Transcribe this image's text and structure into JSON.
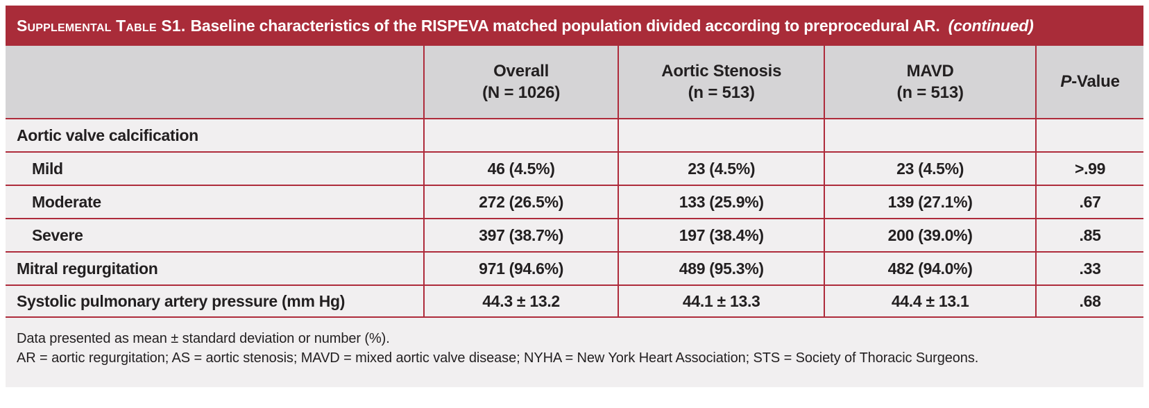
{
  "title": {
    "label_smallcaps": "Supplemental Table S1.",
    "text": "Baseline characteristics of the RISPEVA matched population divided according to preprocedural AR.",
    "continued": "(continued)"
  },
  "colors": {
    "header_bar": "#A92C39",
    "border_red": "#AE2B3B",
    "header_row_bg": "#D5D4D6",
    "row_bg": "#F1EFF0",
    "title_text": "#FFFFFF",
    "body_text": "#221F20"
  },
  "table": {
    "columns": [
      {
        "label": "",
        "sub": ""
      },
      {
        "label": "Overall",
        "sub": "(N = 1026)"
      },
      {
        "label": "Aortic Stenosis",
        "sub": "(n = 513)"
      },
      {
        "label": "MAVD",
        "sub": "(n = 513)"
      },
      {
        "label_italic": "P",
        "label_rest": "-Value",
        "sub": ""
      }
    ],
    "rows": [
      {
        "label": "Aortic valve calcification",
        "indent": false,
        "values": [
          "",
          "",
          "",
          ""
        ]
      },
      {
        "label": "Mild",
        "indent": true,
        "values": [
          "46 (4.5%)",
          "23 (4.5%)",
          "23 (4.5%)",
          ">.99"
        ]
      },
      {
        "label": "Moderate",
        "indent": true,
        "values": [
          "272 (26.5%)",
          "133 (25.9%)",
          "139 (27.1%)",
          ".67"
        ]
      },
      {
        "label": "Severe",
        "indent": true,
        "values": [
          "397 (38.7%)",
          "197 (38.4%)",
          "200 (39.0%)",
          ".85"
        ]
      },
      {
        "label": "Mitral regurgitation",
        "indent": false,
        "values": [
          "971 (94.6%)",
          "489 (95.3%)",
          "482 (94.0%)",
          ".33"
        ]
      },
      {
        "label": "Systolic pulmonary artery pressure (mm Hg)",
        "indent": false,
        "values": [
          "44.3 ± 13.2",
          "44.1 ± 13.3",
          "44.4 ± 13.1",
          ".68"
        ]
      }
    ]
  },
  "footnotes": [
    "Data presented as mean ± standard deviation or number (%).",
    "AR = aortic regurgitation; AS = aortic stenosis; MAVD = mixed aortic valve disease; NYHA = New York Heart Association; STS = Society of Thoracic Surgeons."
  ]
}
